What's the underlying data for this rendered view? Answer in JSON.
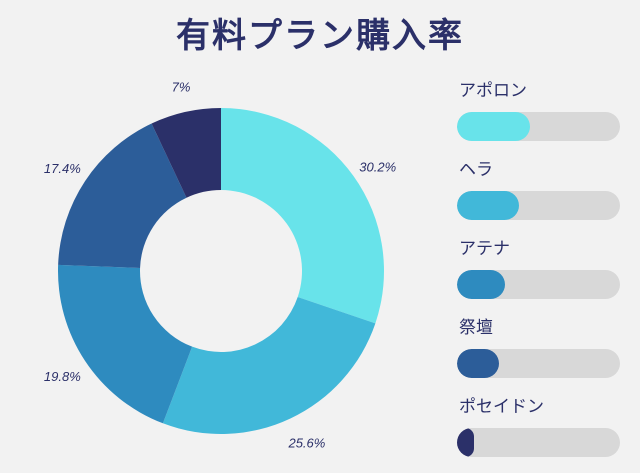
{
  "chart_data": {
    "type": "pie",
    "title": "有料プラン購入率",
    "series": [
      {
        "name": "アポロン",
        "value": 30.2,
        "label": "30.2%",
        "color": "#68e3ea"
      },
      {
        "name": "ヘラ",
        "value": 25.6,
        "label": "25.6%",
        "color": "#41b8d9"
      },
      {
        "name": "アテナ",
        "value": 19.8,
        "label": "19.8%",
        "color": "#2e8bbf"
      },
      {
        "name": "祭壇",
        "value": 17.4,
        "label": "17.4%",
        "color": "#2c5d99"
      },
      {
        "name": "ポセイドン",
        "value": 7,
        "label": "7%",
        "color": "#2b3069"
      }
    ],
    "legend_position": "right",
    "donut": true
  }
}
